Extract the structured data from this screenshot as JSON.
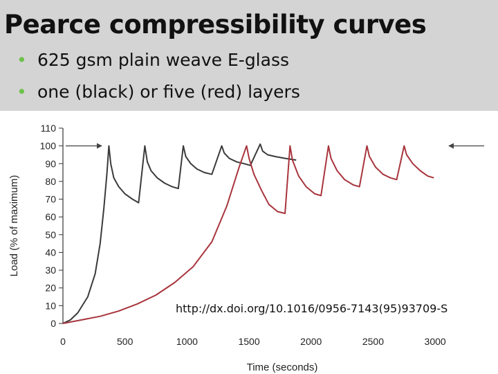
{
  "slide": {
    "title": "Pearce compressibility curves",
    "bullets": [
      "625 gsm plain weave E-glass",
      "one (black) or five (red) layers"
    ],
    "bullet_color": "#6cc24a",
    "header_color": "#d4d4d4"
  },
  "source_url": "http://dx.doi.org/10.1016/0956-7143(95)93709-S",
  "chart_data": {
    "type": "line",
    "xlabel": "Time (seconds)",
    "ylabel": "Load (% of maximum)",
    "xlim": [
      0,
      3200
    ],
    "ylim": [
      0,
      110
    ],
    "x_ticks": [
      0,
      500,
      1000,
      1500,
      2000,
      2500,
      3000
    ],
    "y_ticks": [
      0,
      10,
      20,
      30,
      40,
      50,
      60,
      70,
      80,
      90,
      100,
      110
    ],
    "grid": false,
    "series": [
      {
        "color": "#3a3a3a",
        "points": [
          [
            0,
            0
          ],
          [
            60,
            2
          ],
          [
            120,
            6
          ],
          [
            200,
            15
          ],
          [
            260,
            28
          ],
          [
            300,
            45
          ],
          [
            330,
            65
          ],
          [
            355,
            85
          ],
          [
            370,
            100
          ],
          [
            385,
            90
          ],
          [
            410,
            82
          ],
          [
            450,
            77
          ],
          [
            500,
            73
          ],
          [
            560,
            70
          ],
          [
            610,
            68
          ],
          [
            660,
            100
          ],
          [
            680,
            91
          ],
          [
            710,
            86
          ],
          [
            760,
            82
          ],
          [
            820,
            79
          ],
          [
            880,
            77
          ],
          [
            930,
            76
          ],
          [
            970,
            100
          ],
          [
            990,
            94
          ],
          [
            1030,
            90
          ],
          [
            1080,
            87
          ],
          [
            1140,
            85
          ],
          [
            1200,
            84
          ],
          [
            1280,
            100
          ],
          [
            1300,
            96
          ],
          [
            1340,
            93
          ],
          [
            1400,
            91
          ],
          [
            1460,
            90
          ],
          [
            1510,
            89
          ],
          [
            1590,
            101
          ],
          [
            1610,
            97
          ],
          [
            1650,
            95
          ],
          [
            1710,
            94
          ],
          [
            1790,
            93
          ],
          [
            1880,
            92
          ]
        ]
      },
      {
        "color": "#a8343c",
        "points": [
          [
            0,
            0
          ],
          [
            150,
            2
          ],
          [
            300,
            4
          ],
          [
            450,
            7
          ],
          [
            600,
            11
          ],
          [
            750,
            16
          ],
          [
            900,
            23
          ],
          [
            1050,
            32
          ],
          [
            1200,
            46
          ],
          [
            1320,
            66
          ],
          [
            1420,
            88
          ],
          [
            1480,
            100
          ],
          [
            1500,
            93
          ],
          [
            1540,
            84
          ],
          [
            1600,
            75
          ],
          [
            1660,
            67
          ],
          [
            1730,
            63
          ],
          [
            1790,
            62
          ],
          [
            1830,
            100
          ],
          [
            1850,
            92
          ],
          [
            1900,
            83
          ],
          [
            1960,
            77
          ],
          [
            2030,
            73
          ],
          [
            2080,
            72
          ],
          [
            2140,
            100
          ],
          [
            2160,
            93
          ],
          [
            2210,
            86
          ],
          [
            2270,
            81
          ],
          [
            2340,
            78
          ],
          [
            2390,
            77
          ],
          [
            2450,
            100
          ],
          [
            2470,
            94
          ],
          [
            2520,
            88
          ],
          [
            2580,
            84
          ],
          [
            2640,
            82
          ],
          [
            2690,
            81
          ],
          [
            2750,
            100
          ],
          [
            2770,
            95
          ],
          [
            2820,
            90
          ],
          [
            2880,
            86
          ],
          [
            2940,
            83
          ],
          [
            2990,
            82
          ]
        ]
      }
    ],
    "arrows": [
      {
        "direction": "right",
        "y": 100
      },
      {
        "direction": "left",
        "y": 100
      }
    ]
  }
}
